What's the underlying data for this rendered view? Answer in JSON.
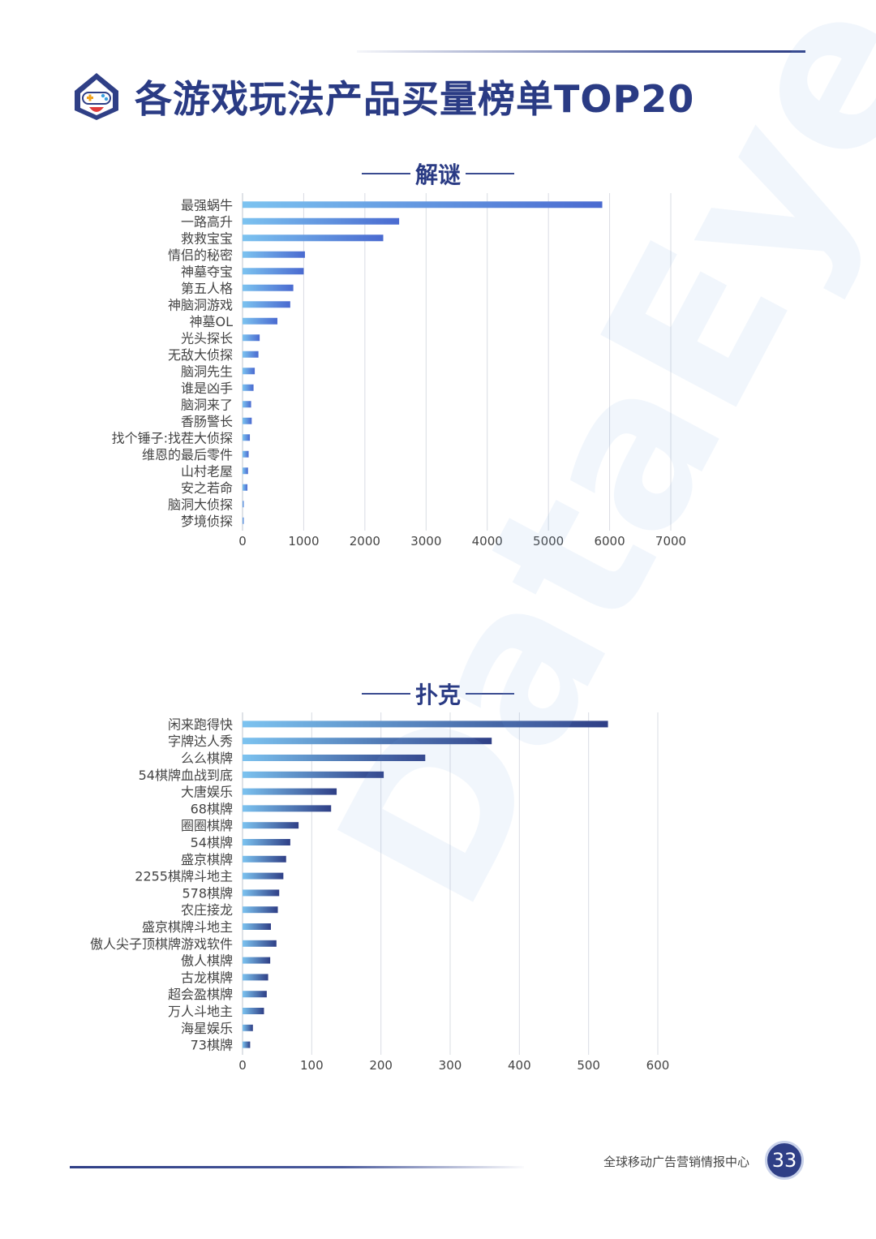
{
  "page": {
    "title": "各游戏玩法产品买量榜单TOP20",
    "footer_text": "全球移动广告营销情报中心",
    "page_number": "33",
    "watermark": "DataEye"
  },
  "colors": {
    "title": "#2a3b84",
    "bar_start": "#7cc3f0",
    "bar_end_puzzle": "#4a6ad0",
    "bar_end_poker": "#2f3f86",
    "grid": "#d9dce3"
  },
  "chart_data": [
    {
      "type": "bar",
      "orientation": "horizontal",
      "title": "解谜",
      "categories": [
        "最强蜗牛",
        "一路高升",
        "救救宝宝",
        "情侣的秘密",
        "神墓夺宝",
        "第五人格",
        "神脑洞游戏",
        "神墓OL",
        "光头探长",
        "无敌大侦探",
        "脑洞先生",
        "谁是凶手",
        "脑洞来了",
        "香肠警长",
        "找个锤子:找茬大侦探",
        "维恩的最后零件",
        "山村老屋",
        "安之若命",
        "脑洞大侦探",
        "梦境侦探"
      ],
      "values": [
        5880,
        2560,
        2300,
        1020,
        1000,
        830,
        780,
        570,
        280,
        260,
        200,
        180,
        140,
        150,
        120,
        100,
        90,
        80,
        20,
        10
      ],
      "xlim": [
        0,
        7000
      ],
      "ticks": [
        0,
        1000,
        2000,
        3000,
        4000,
        5000,
        6000,
        7000
      ],
      "grid": true
    },
    {
      "type": "bar",
      "orientation": "horizontal",
      "title": "扑克",
      "categories": [
        "闲来跑得快",
        "字牌达人秀",
        "么么棋牌",
        "54棋牌血战到底",
        "大唐娱乐",
        "68棋牌",
        "圈圈棋牌",
        "54棋牌",
        "盛京棋牌",
        "2255棋牌斗地主",
        "578棋牌",
        "农庄接龙",
        "盛京棋牌斗地主",
        "傲人尖子顶棋牌游戏软件",
        "傲人棋牌",
        "古龙棋牌",
        "超会盈棋牌",
        "万人斗地主",
        "海星娱乐",
        "73棋牌"
      ],
      "values": [
        528,
        360,
        264,
        204,
        136,
        128,
        81,
        69,
        63,
        59,
        53,
        51,
        41,
        49,
        40,
        37,
        35,
        31,
        15,
        11
      ],
      "xlim": [
        0,
        600
      ],
      "ticks": [
        0,
        100,
        200,
        300,
        400,
        500,
        600
      ],
      "grid": true
    }
  ]
}
